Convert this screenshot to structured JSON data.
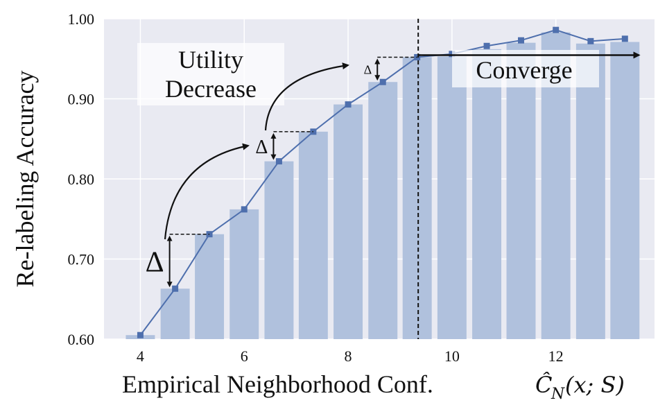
{
  "chart_data": {
    "type": "bar",
    "xlabel": "Empirical Neighborhood Conf.",
    "xlabel_math": "Ĉ",
    "xlabel_math_sub": "N",
    "xlabel_math_args": "(x; S)",
    "ylabel": "Re-labeling Accuracy",
    "ylim": [
      0.6,
      1.0
    ],
    "xlim": [
      3.3,
      13.9
    ],
    "x_ticks": [
      4,
      6,
      8,
      10,
      12
    ],
    "y_ticks": [
      "0.60",
      "0.70",
      "0.80",
      "0.90",
      "1.00"
    ],
    "grid": true,
    "x": [
      4.0,
      4.67,
      5.33,
      6.0,
      6.67,
      7.33,
      8.0,
      8.67,
      9.33,
      10.0,
      10.67,
      11.33,
      12.0,
      12.67,
      13.33
    ],
    "series": [
      {
        "type": "bar",
        "values": [
          0.605,
          0.663,
          0.731,
          0.762,
          0.822,
          0.859,
          0.893,
          0.921,
          0.952,
          0.953,
          0.962,
          0.97,
          0.983,
          0.969,
          0.971
        ]
      },
      {
        "type": "line",
        "values": [
          0.605,
          0.663,
          0.731,
          0.762,
          0.822,
          0.859,
          0.893,
          0.921,
          0.952,
          0.956,
          0.966,
          0.973,
          0.986,
          0.972,
          0.975
        ]
      }
    ],
    "convergence_x": 9.35,
    "annotations": {
      "utility_line1": "Utility",
      "utility_line2": "Decrease",
      "converge": "Converge",
      "delta": "Δ"
    },
    "colors": {
      "bar": "#b0c1dd",
      "line": "#4e6fad",
      "plot_bg": "#e9eaf2",
      "grid": "#ffffff"
    }
  }
}
